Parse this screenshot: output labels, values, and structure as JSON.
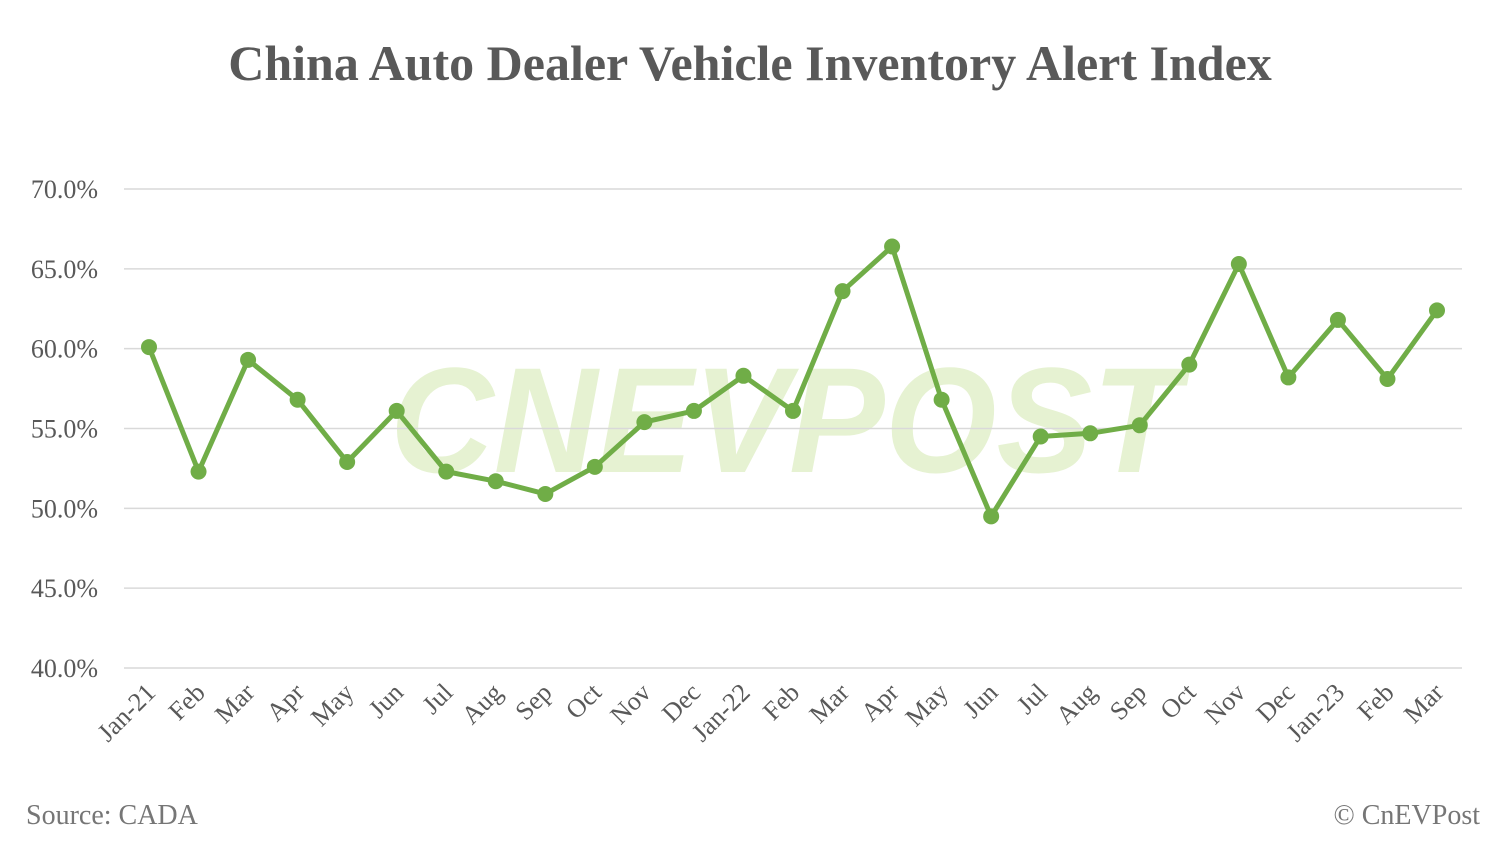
{
  "chart_data": {
    "type": "line",
    "title": "China Auto Dealer Vehicle Inventory Alert Index",
    "xlabel": "",
    "ylabel": "",
    "ylim": [
      40,
      70
    ],
    "yticks": [
      "40.0%",
      "45.0%",
      "50.0%",
      "55.0%",
      "60.0%",
      "65.0%",
      "70.0%"
    ],
    "grid": true,
    "categories": [
      "Jan-21",
      "Feb",
      "Mar",
      "Apr",
      "May",
      "Jun",
      "Jul",
      "Aug",
      "Sep",
      "Oct",
      "Nov",
      "Dec",
      "Jan-22",
      "Feb",
      "Mar",
      "Apr",
      "May",
      "Jun",
      "Jul",
      "Aug",
      "Sep",
      "Oct",
      "Nov",
      "Dec",
      "Jan-23",
      "Feb",
      "Mar"
    ],
    "series": [
      {
        "values": [
          60.1,
          52.3,
          59.3,
          56.8,
          52.9,
          56.1,
          52.3,
          51.7,
          50.9,
          52.6,
          55.4,
          56.1,
          58.3,
          56.1,
          63.6,
          66.4,
          56.8,
          49.5,
          54.5,
          54.7,
          55.2,
          59.0,
          65.3,
          58.2,
          61.8,
          58.1,
          62.4
        ],
        "color": "#70ad47"
      }
    ]
  },
  "watermark": "CNEVPOST",
  "footer": {
    "source": "Source: CADA",
    "copyright": "© CnEVPost"
  },
  "colors": {
    "line": "#70ad47",
    "grid": "#d9d9d9",
    "text": "#595959",
    "watermark": "#e6f2d2"
  }
}
